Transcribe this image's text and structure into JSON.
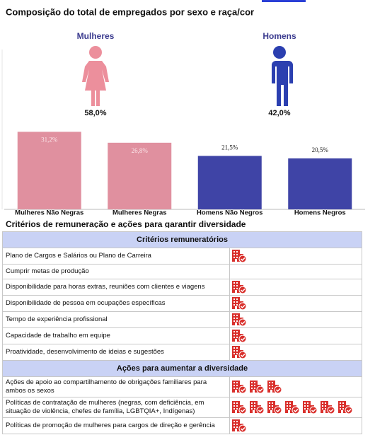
{
  "title": "Composição do total de empregados por sexo e raça/cor",
  "gender": [
    {
      "label": "Mulheres",
      "share": "58,0%"
    },
    {
      "label": "Homens",
      "share": "42,0%"
    }
  ],
  "chart_data": {
    "type": "bar",
    "categories": [
      "Mulheres Não Negras",
      "Mulheres Negras",
      "Homens Não Negros",
      "Homens Negros"
    ],
    "values": [
      31.2,
      26.8,
      21.5,
      20.5
    ],
    "value_labels": [
      "31,2%",
      "26,8%",
      "21,5%",
      "20,5%"
    ],
    "label_positions": [
      "inside",
      "inside",
      "above",
      "above"
    ],
    "colors": [
      "#e0909f",
      "#e0909f",
      "#3f44a6",
      "#3f44a6"
    ],
    "ylim": [
      0,
      35
    ]
  },
  "section_title": "Critérios de remuneração e ações para garantir diversidade",
  "table": {
    "sections": [
      {
        "header": "Critérios remuneratórios",
        "rows": [
          {
            "label": "Plano de Cargos e Salários ou Plano de Carreira",
            "icons": 1
          },
          {
            "label": "Cumprir metas de produção",
            "icons": 0
          },
          {
            "label": "Disponibilidade para horas extras, reuniões com clientes e viagens",
            "icons": 1
          },
          {
            "label": "Disponibilidade de pessoa em ocupações específicas",
            "icons": 1
          },
          {
            "label": "Tempo de experiência profissional",
            "icons": 1
          },
          {
            "label": "Capacidade de trabalho em equipe",
            "icons": 1
          },
          {
            "label": "Proatividade, desenvolvimento de ideias e sugestões",
            "icons": 1
          }
        ]
      },
      {
        "header": "Ações para aumentar a diversidade",
        "rows": [
          {
            "label": "Ações de apoio ao compartilhamento de obrigações familiares para ambos os sexos",
            "icons": 3
          },
          {
            "label": "Políticas de contratação de mulheres (negras, com deficiência, em situação de violência, chefes de família, LGBTQIA+, Indígenas)",
            "icons": 7
          },
          {
            "label": "Políticas de promoção de mulheres para cargos de direção e gerência",
            "icons": 1
          }
        ]
      }
    ]
  }
}
